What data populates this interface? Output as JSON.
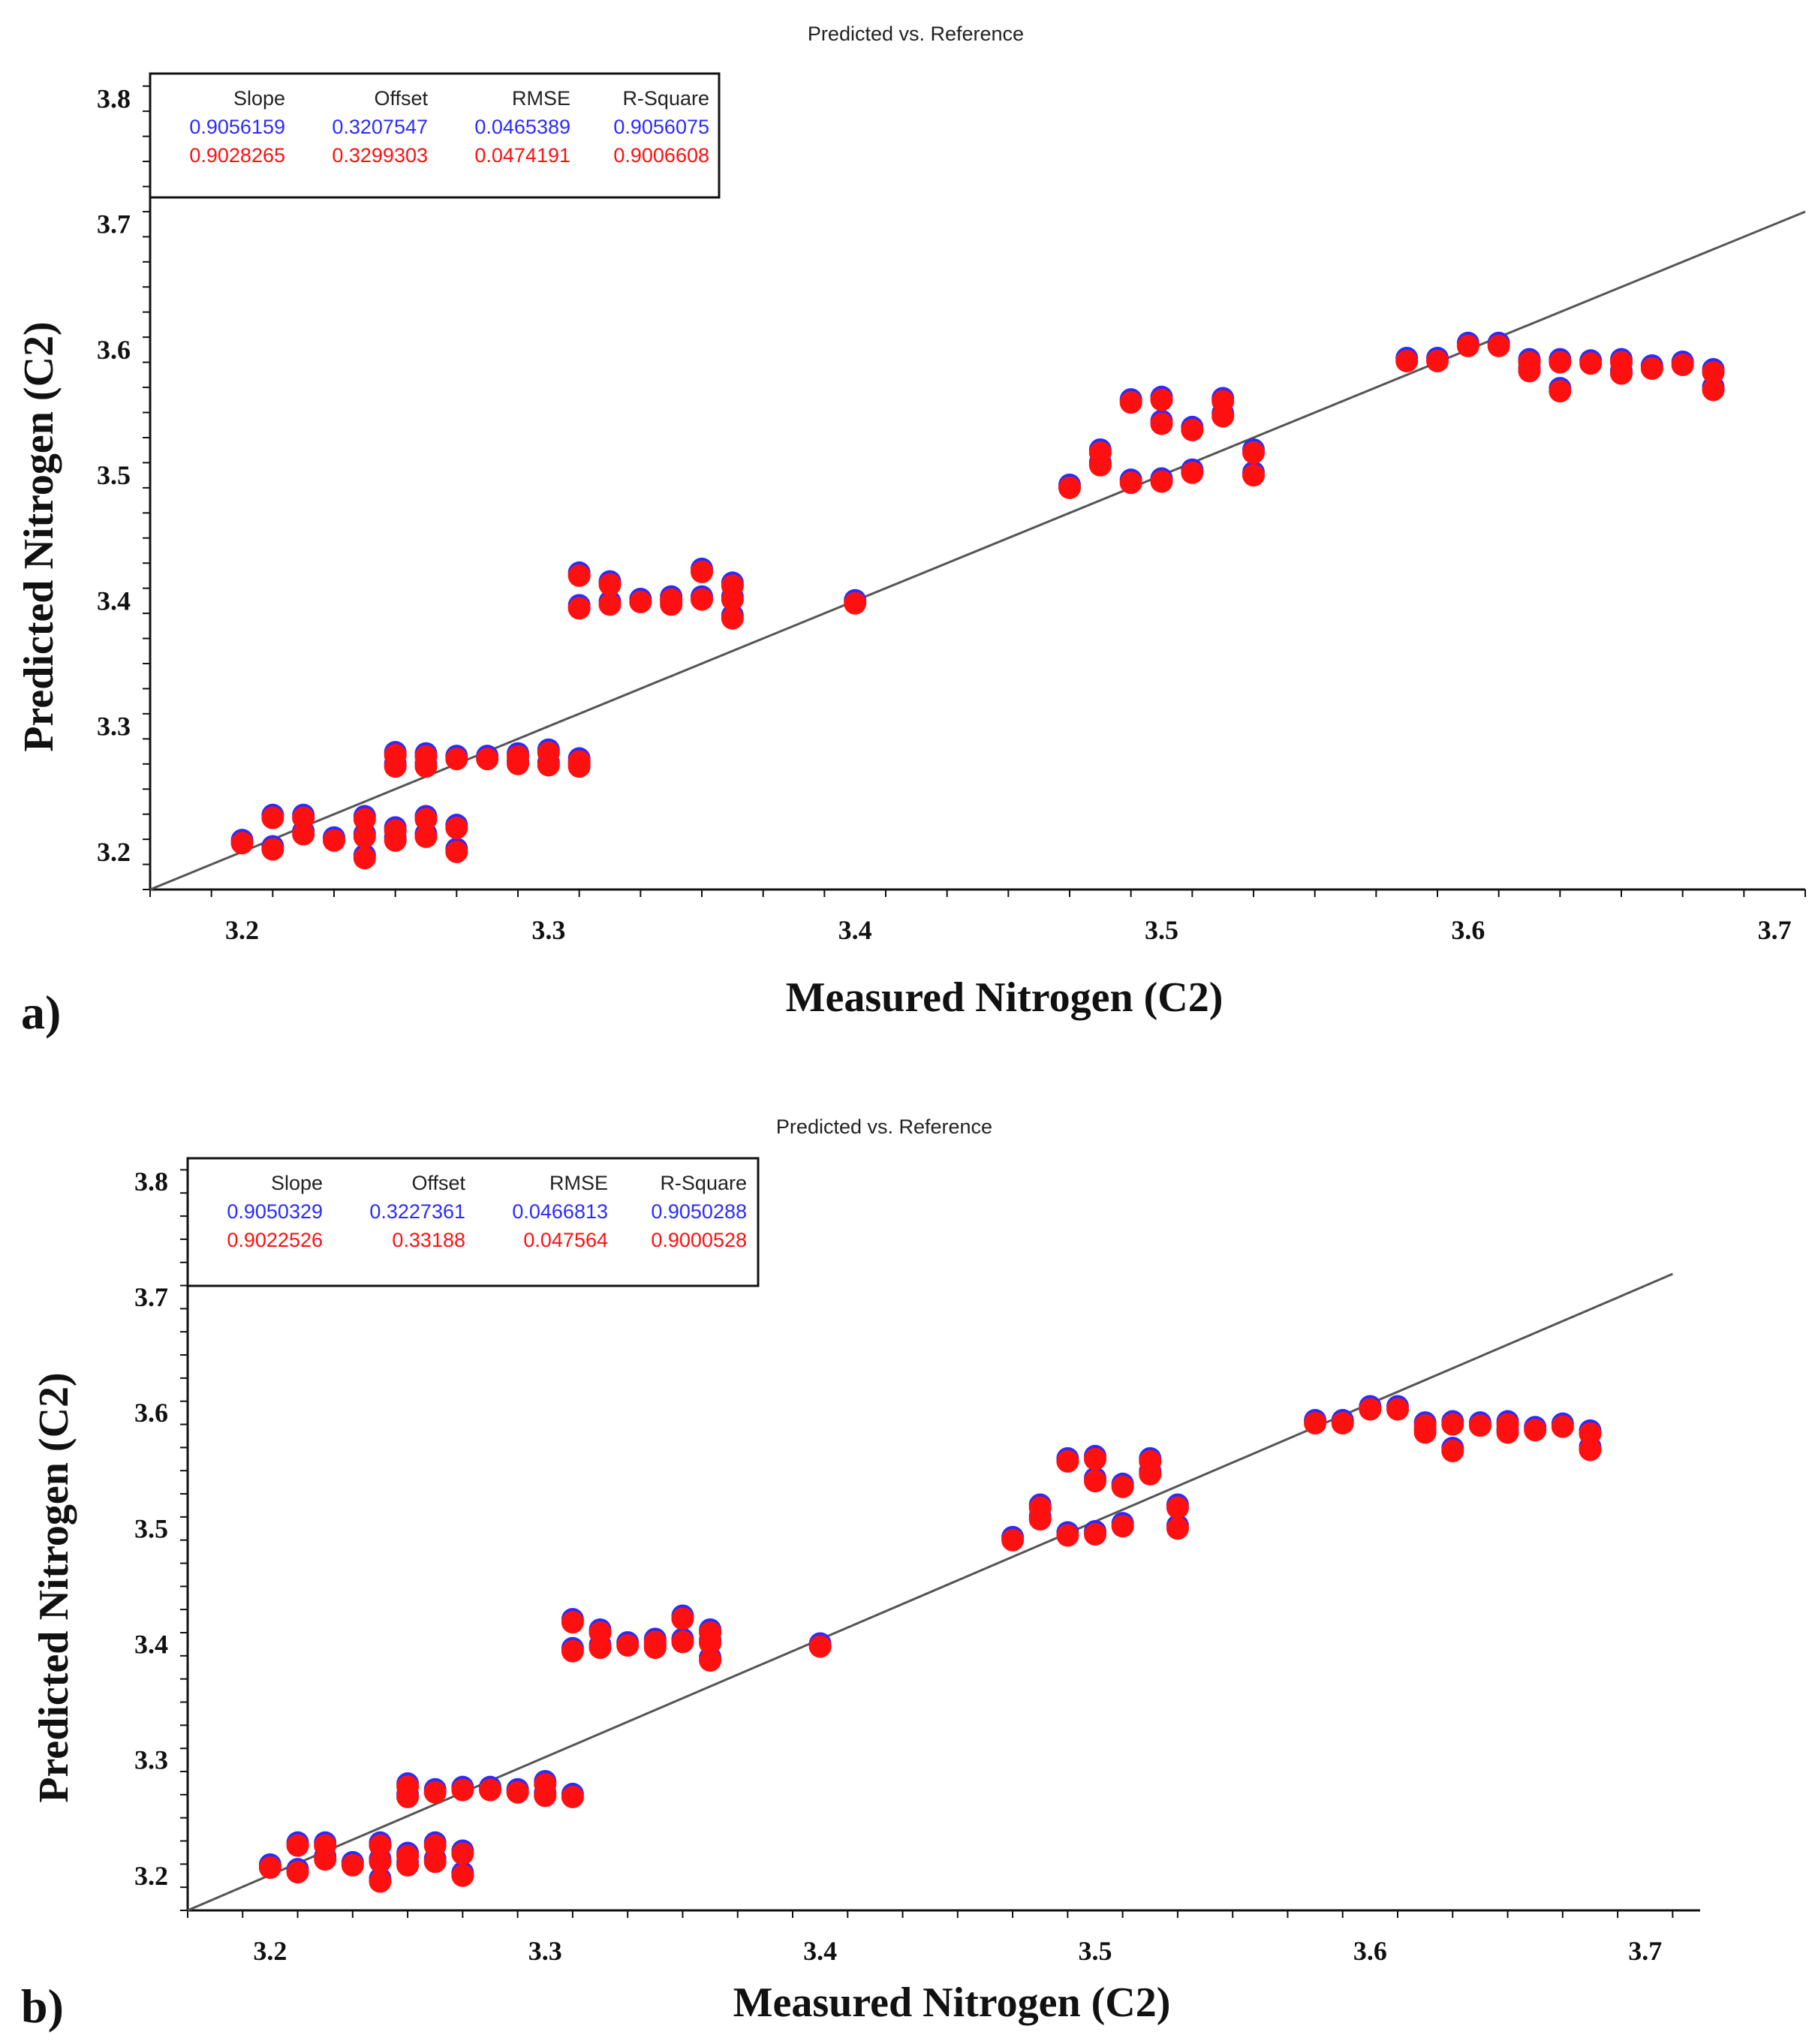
{
  "colors": {
    "blue": "#2b2bff",
    "red": "#ff1010",
    "line": "#555555",
    "axis": "#111111"
  },
  "chart_data": [
    {
      "panel": "a)",
      "type": "scatter",
      "title": "Predicted vs. Reference",
      "xlabel": "Measured Nitrogen (C2)",
      "ylabel": "Predicted Nitrogen (C2)",
      "xlim": [
        3.17,
        3.71
      ],
      "ylim": [
        3.17,
        3.82
      ],
      "xticks": [
        "3.2",
        "3.3",
        "3.4",
        "3.5",
        "3.6",
        "3.7"
      ],
      "yticks": [
        "3.2",
        "3.3",
        "3.4",
        "3.5",
        "3.6",
        "3.7",
        "3.8"
      ],
      "xtick_values": [
        3.2,
        3.3,
        3.4,
        3.5,
        3.6,
        3.7
      ],
      "ytick_values": [
        3.2,
        3.3,
        3.4,
        3.5,
        3.6,
        3.7,
        3.8
      ],
      "legend": {
        "headers": [
          "Slope",
          "Offset",
          "RMSE",
          "R-Square"
        ],
        "rows": [
          {
            "series": "blue",
            "values": [
              "0.9056159",
              "0.3207547",
              "0.0465389",
              "0.9056075"
            ]
          },
          {
            "series": "red",
            "values": [
              "0.9028265",
              "0.3299303",
              "0.0474191",
              "0.9006608"
            ]
          }
        ]
      },
      "target_line": {
        "from": [
          3.17,
          3.17
        ],
        "to": [
          3.71,
          3.71
        ]
      },
      "points": [
        [
          3.2,
          3.207
        ],
        [
          3.21,
          3.202
        ],
        [
          3.21,
          3.227
        ],
        [
          3.22,
          3.227
        ],
        [
          3.22,
          3.214
        ],
        [
          3.23,
          3.209
        ],
        [
          3.24,
          3.195
        ],
        [
          3.24,
          3.212
        ],
        [
          3.24,
          3.226
        ],
        [
          3.25,
          3.209
        ],
        [
          3.25,
          3.217
        ],
        [
          3.26,
          3.212
        ],
        [
          3.26,
          3.226
        ],
        [
          3.27,
          3.2
        ],
        [
          3.27,
          3.219
        ],
        [
          3.25,
          3.268
        ],
        [
          3.25,
          3.277
        ],
        [
          3.26,
          3.268
        ],
        [
          3.26,
          3.276
        ],
        [
          3.27,
          3.274
        ],
        [
          3.28,
          3.274
        ],
        [
          3.29,
          3.27
        ],
        [
          3.29,
          3.276
        ],
        [
          3.3,
          3.269
        ],
        [
          3.3,
          3.279
        ],
        [
          3.31,
          3.268
        ],
        [
          3.31,
          3.272
        ],
        [
          3.31,
          3.394
        ],
        [
          3.31,
          3.42
        ],
        [
          3.32,
          3.397
        ],
        [
          3.32,
          3.413
        ],
        [
          3.33,
          3.399
        ],
        [
          3.34,
          3.397
        ],
        [
          3.34,
          3.401
        ],
        [
          3.35,
          3.401
        ],
        [
          3.35,
          3.423
        ],
        [
          3.36,
          3.386
        ],
        [
          3.36,
          3.401
        ],
        [
          3.36,
          3.412
        ],
        [
          3.4,
          3.398
        ],
        [
          3.47,
          3.49
        ],
        [
          3.48,
          3.508
        ],
        [
          3.48,
          3.518
        ],
        [
          3.49,
          3.494
        ],
        [
          3.49,
          3.558
        ],
        [
          3.5,
          3.495
        ],
        [
          3.5,
          3.541
        ],
        [
          3.5,
          3.56
        ],
        [
          3.51,
          3.502
        ],
        [
          3.51,
          3.536
        ],
        [
          3.52,
          3.547
        ],
        [
          3.52,
          3.559
        ],
        [
          3.53,
          3.5
        ],
        [
          3.53,
          3.518
        ],
        [
          3.58,
          3.591
        ],
        [
          3.59,
          3.591
        ],
        [
          3.6,
          3.603
        ],
        [
          3.61,
          3.603
        ],
        [
          3.62,
          3.583
        ],
        [
          3.62,
          3.59
        ],
        [
          3.63,
          3.567
        ],
        [
          3.63,
          3.59
        ],
        [
          3.64,
          3.589
        ],
        [
          3.65,
          3.581
        ],
        [
          3.65,
          3.59
        ],
        [
          3.66,
          3.585
        ],
        [
          3.67,
          3.588
        ],
        [
          3.68,
          3.568
        ],
        [
          3.68,
          3.582
        ]
      ]
    },
    {
      "panel": "b)",
      "type": "scatter",
      "title": "Predicted vs. Reference",
      "xlabel": "Measured Nitrogen (C2)",
      "ylabel": "Predicted Nitrogen (C2)",
      "xlim": [
        3.17,
        3.72
      ],
      "ylim": [
        3.17,
        3.82
      ],
      "xticks": [
        "3.2",
        "3.3",
        "3.4",
        "3.5",
        "3.6",
        "3.7"
      ],
      "yticks": [
        "3.2",
        "3.3",
        "3.4",
        "3.5",
        "3.6",
        "3.7",
        "3.8"
      ],
      "xtick_values": [
        3.2,
        3.3,
        3.4,
        3.5,
        3.6,
        3.7
      ],
      "ytick_values": [
        3.2,
        3.3,
        3.4,
        3.5,
        3.6,
        3.7,
        3.8
      ],
      "legend": {
        "headers": [
          "Slope",
          "Offset",
          "RMSE",
          "R-Square"
        ],
        "rows": [
          {
            "series": "blue",
            "values": [
              "0.9050329",
              "0.3227361",
              "0.0466813",
              "0.9050288"
            ]
          },
          {
            "series": "red",
            "values": [
              "0.9022526",
              "0.33188",
              "0.047564",
              "0.9000528"
            ]
          }
        ]
      },
      "target_line": {
        "from": [
          3.17,
          3.17
        ],
        "to": [
          3.71,
          3.72
        ]
      },
      "points": [
        [
          3.2,
          3.207
        ],
        [
          3.21,
          3.203
        ],
        [
          3.21,
          3.226
        ],
        [
          3.22,
          3.226
        ],
        [
          3.22,
          3.214
        ],
        [
          3.23,
          3.209
        ],
        [
          3.24,
          3.195
        ],
        [
          3.24,
          3.212
        ],
        [
          3.24,
          3.226
        ],
        [
          3.25,
          3.209
        ],
        [
          3.25,
          3.217
        ],
        [
          3.26,
          3.212
        ],
        [
          3.26,
          3.226
        ],
        [
          3.27,
          3.2
        ],
        [
          3.27,
          3.219
        ],
        [
          3.25,
          3.268
        ],
        [
          3.25,
          3.277
        ],
        [
          3.26,
          3.272
        ],
        [
          3.27,
          3.274
        ],
        [
          3.28,
          3.274
        ],
        [
          3.29,
          3.272
        ],
        [
          3.3,
          3.269
        ],
        [
          3.3,
          3.279
        ],
        [
          3.31,
          3.268
        ],
        [
          3.31,
          3.394
        ],
        [
          3.31,
          3.419
        ],
        [
          3.32,
          3.397
        ],
        [
          3.32,
          3.41
        ],
        [
          3.33,
          3.399
        ],
        [
          3.34,
          3.397
        ],
        [
          3.34,
          3.402
        ],
        [
          3.35,
          3.402
        ],
        [
          3.35,
          3.422
        ],
        [
          3.36,
          3.386
        ],
        [
          3.36,
          3.401
        ],
        [
          3.36,
          3.41
        ],
        [
          3.4,
          3.398
        ],
        [
          3.47,
          3.49
        ],
        [
          3.48,
          3.508
        ],
        [
          3.48,
          3.518
        ],
        [
          3.49,
          3.494
        ],
        [
          3.49,
          3.558
        ],
        [
          3.5,
          3.495
        ],
        [
          3.5,
          3.541
        ],
        [
          3.5,
          3.56
        ],
        [
          3.51,
          3.502
        ],
        [
          3.51,
          3.536
        ],
        [
          3.52,
          3.547
        ],
        [
          3.52,
          3.558
        ],
        [
          3.53,
          3.5
        ],
        [
          3.53,
          3.518
        ],
        [
          3.58,
          3.591
        ],
        [
          3.59,
          3.591
        ],
        [
          3.6,
          3.603
        ],
        [
          3.61,
          3.603
        ],
        [
          3.62,
          3.583
        ],
        [
          3.62,
          3.589
        ],
        [
          3.63,
          3.567
        ],
        [
          3.63,
          3.59
        ],
        [
          3.64,
          3.589
        ],
        [
          3.65,
          3.583
        ],
        [
          3.65,
          3.59
        ],
        [
          3.66,
          3.585
        ],
        [
          3.67,
          3.588
        ],
        [
          3.68,
          3.568
        ],
        [
          3.68,
          3.582
        ]
      ]
    }
  ]
}
